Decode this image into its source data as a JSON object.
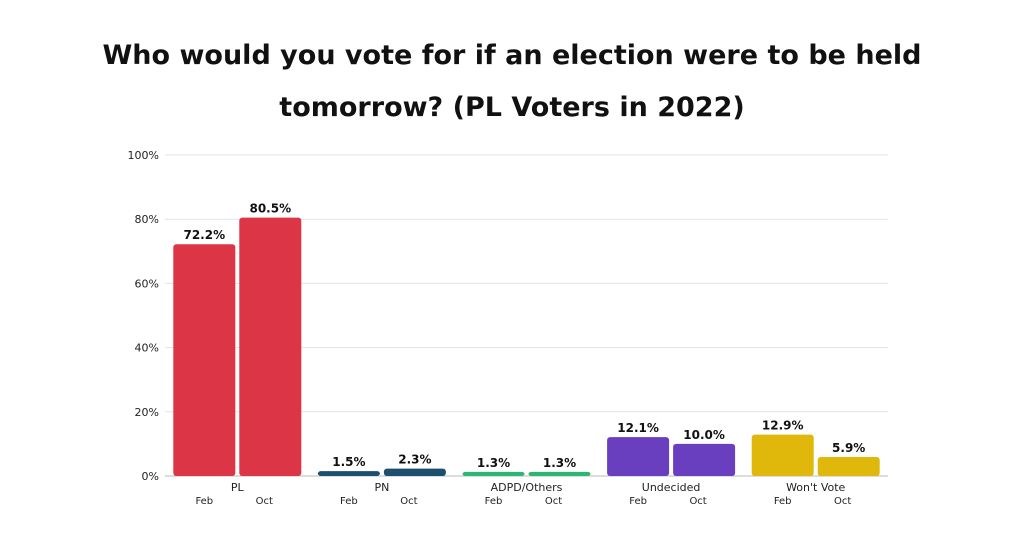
{
  "chart_data": {
    "type": "bar",
    "title_line1": "Who would you vote for if an election were to be held",
    "title_line2": "tomorrow? (PL Voters in 2022)",
    "categories": [
      "PL",
      "PN",
      "ADPD/Others",
      "Undecided",
      "Won't Vote"
    ],
    "series": [
      {
        "name": "Feb",
        "values": [
          72.2,
          1.5,
          1.3,
          12.1,
          12.9
        ]
      },
      {
        "name": "Oct",
        "values": [
          80.5,
          2.3,
          1.3,
          10.0,
          5.9
        ]
      }
    ],
    "data_labels": [
      [
        "72.2%",
        "80.5%"
      ],
      [
        "1.5%",
        "2.3%"
      ],
      [
        "1.3%",
        "1.3%"
      ],
      [
        "12.1%",
        "10.0%"
      ],
      [
        "12.9%",
        "5.9%"
      ]
    ],
    "colors": [
      "#dc3545",
      "#1d4e6e",
      "#2bb673",
      "#6a3fbf",
      "#e0b80c"
    ],
    "ylim": [
      0,
      100
    ],
    "yticks": [
      "0%",
      "20%",
      "40%",
      "60%",
      "80%",
      "100%"
    ],
    "legend": "none",
    "grid": true
  }
}
